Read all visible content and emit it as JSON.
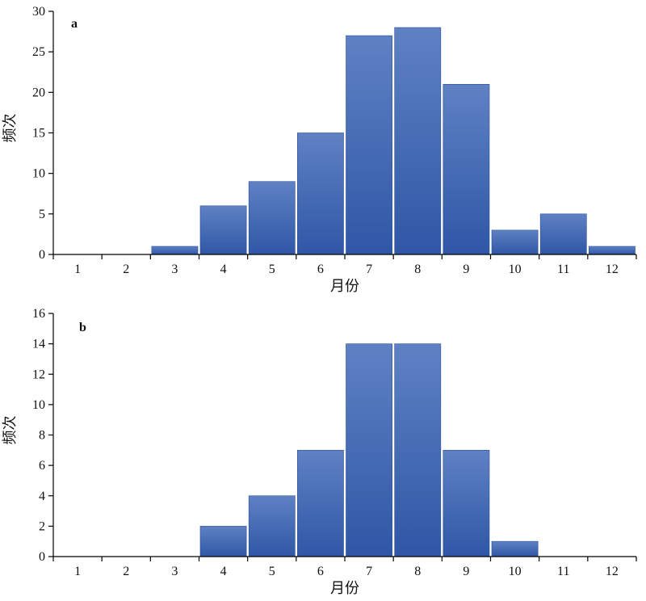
{
  "chart_data": [
    {
      "type": "bar",
      "panel_label": "a",
      "categories": [
        "1",
        "2",
        "3",
        "4",
        "5",
        "6",
        "7",
        "8",
        "9",
        "10",
        "11",
        "12"
      ],
      "values": [
        0,
        0,
        1,
        6,
        9,
        15,
        27,
        28,
        21,
        3,
        5,
        1
      ],
      "xlabel": "月份",
      "ylabel": "频次",
      "ylim": [
        0,
        30
      ],
      "yticks": [
        0,
        5,
        10,
        15,
        20,
        25,
        30
      ],
      "grid": false,
      "bar_color": "#3b62ad"
    },
    {
      "type": "bar",
      "panel_label": "b",
      "categories": [
        "1",
        "2",
        "3",
        "4",
        "5",
        "6",
        "7",
        "8",
        "9",
        "10",
        "11",
        "12"
      ],
      "values": [
        0,
        0,
        0,
        2,
        4,
        7,
        14,
        14,
        7,
        1,
        0,
        0
      ],
      "xlabel": "月份",
      "ylabel": "频次",
      "ylim": [
        0,
        16
      ],
      "yticks": [
        0,
        2,
        4,
        6,
        8,
        10,
        12,
        14,
        16
      ],
      "grid": false,
      "bar_color": "#3b62ad"
    }
  ]
}
